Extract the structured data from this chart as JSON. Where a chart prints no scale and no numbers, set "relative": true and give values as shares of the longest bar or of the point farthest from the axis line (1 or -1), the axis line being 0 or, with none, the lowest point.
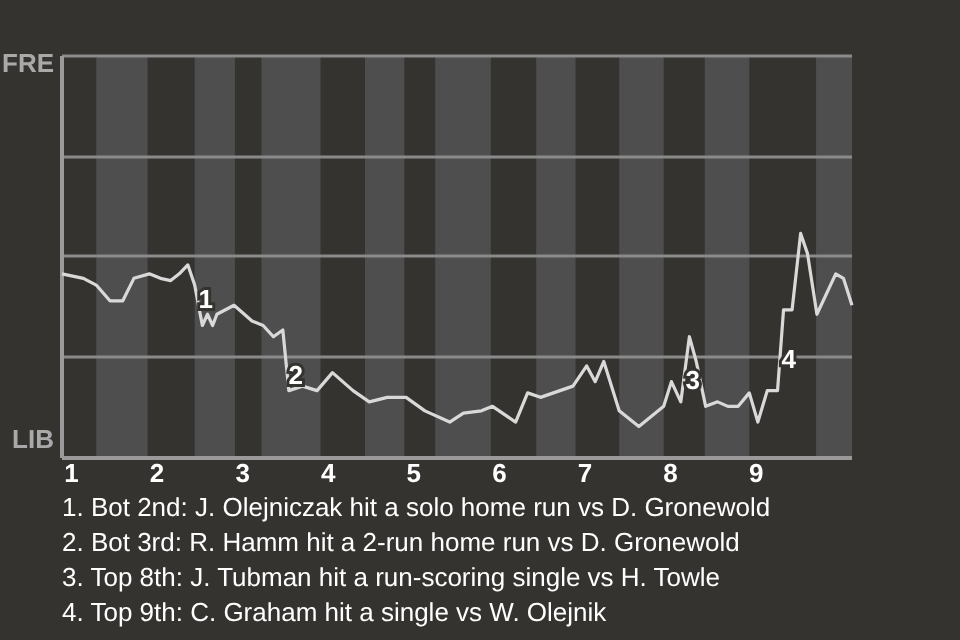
{
  "chart_data": {
    "type": "line",
    "relative": true,
    "x": [
      0.89,
      1.14,
      1.29,
      1.45,
      1.6,
      1.73,
      1.91,
      2.04,
      2.16,
      2.26,
      2.36,
      2.44,
      2.53,
      2.59,
      2.65,
      2.7,
      2.9,
      3.11,
      3.24,
      3.36,
      3.47,
      3.54,
      3.7,
      3.87,
      4.05,
      4.29,
      4.48,
      4.69,
      4.91,
      5.13,
      5.42,
      5.58,
      5.79,
      5.92,
      6.19,
      6.33,
      6.48,
      6.86,
      7.02,
      7.12,
      7.22,
      7.4,
      7.63,
      7.92,
      8.01,
      8.12,
      8.22,
      8.3,
      8.41,
      8.55,
      8.67,
      8.79,
      8.92,
      9.02,
      9.13,
      9.25,
      9.32,
      9.42,
      9.52,
      9.6,
      9.71,
      9.93,
      10.02,
      10.12
    ],
    "series": [
      {
        "color": "#d9d9d9",
        "values": [
          0.82,
          0.8,
          0.77,
          0.7,
          0.7,
          0.8,
          0.82,
          0.8,
          0.79,
          0.82,
          0.86,
          0.77,
          0.59,
          0.64,
          0.59,
          0.64,
          0.68,
          0.61,
          0.59,
          0.54,
          0.57,
          0.3,
          0.32,
          0.3,
          0.38,
          0.3,
          0.25,
          0.27,
          0.27,
          0.21,
          0.16,
          0.2,
          0.21,
          0.23,
          0.16,
          0.29,
          0.27,
          0.32,
          0.41,
          0.34,
          0.43,
          0.21,
          0.14,
          0.23,
          0.34,
          0.25,
          0.54,
          0.43,
          0.23,
          0.25,
          0.23,
          0.23,
          0.29,
          0.16,
          0.3,
          0.3,
          0.66,
          0.66,
          1,
          0.91,
          0.64,
          0.82,
          0.8,
          0.68
        ]
      }
    ],
    "xlim": [
      0.89,
      10.12
    ],
    "xticks": [
      1,
      2,
      3,
      4,
      5,
      6,
      7,
      8,
      9
    ],
    "ref_lines": [
      {
        "axis": "y",
        "value": 0.45,
        "color": "#8a8a8a"
      },
      {
        "axis": "y",
        "value": 0.9,
        "color": "#8a8a8a"
      },
      {
        "axis": "y",
        "value": 1.34,
        "color": "#8a8a8a"
      }
    ],
    "bands": [
      {
        "axis": "x",
        "from": 1.29,
        "to": 1.89,
        "color": "#4e4e4e"
      },
      {
        "axis": "x",
        "from": 2.44,
        "to": 2.91,
        "color": "#4e4e4e"
      },
      {
        "axis": "x",
        "from": 3.22,
        "to": 3.91,
        "color": "#4e4e4e"
      },
      {
        "axis": "x",
        "from": 4.43,
        "to": 4.89,
        "color": "#4e4e4e"
      },
      {
        "axis": "x",
        "from": 5.25,
        "to": 5.9,
        "color": "#4e4e4e"
      },
      {
        "axis": "x",
        "from": 6.43,
        "to": 6.89,
        "color": "#4e4e4e"
      },
      {
        "axis": "x",
        "from": 7.4,
        "to": 7.92,
        "color": "#4e4e4e"
      },
      {
        "axis": "x",
        "from": 8.4,
        "to": 8.92,
        "color": "#4e4e4e"
      },
      {
        "axis": "x",
        "from": 9.7,
        "to": 10.12,
        "color": "#4e4e4e"
      }
    ],
    "annotations": [
      "FRE",
      "LIB",
      {
        "text": "1",
        "x": 2.57,
        "y": 0.7
      },
      {
        "text": "2",
        "x": 3.62,
        "y": 0.36
      },
      {
        "text": "3",
        "x": 8.26,
        "y": 0.34
      },
      {
        "text": "4",
        "x": 9.38,
        "y": 0.43
      },
      "1. Bot 2nd: J. Olejniczak hit a solo home run vs D. Gronewold",
      "2. Bot 3rd: R. Hamm hit a 2-run home run vs D. Gronewold",
      "3. Top 8th: J. Tubman hit a run-scoring single vs H. Towle",
      "4. Top 9th: C. Graham hit a single vs W. Olejnik"
    ]
  }
}
